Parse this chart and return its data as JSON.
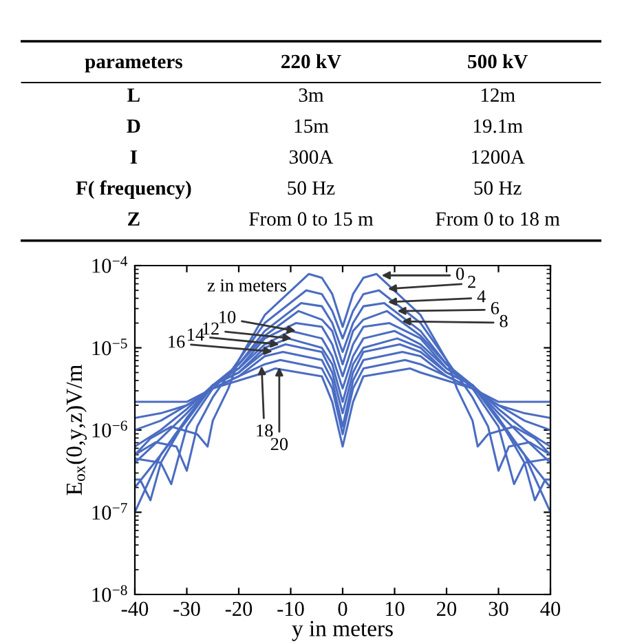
{
  "chart_data": [
    {
      "type": "other",
      "annotations": [
        "parameters",
        "220 kV",
        "500 kV",
        "L",
        "3m",
        "12m",
        "D",
        "15m",
        "19.1m",
        "I",
        "300A",
        "1200A",
        "F( frequency)",
        "50 Hz",
        "50 Hz",
        "Z",
        "From 0 to 15 m",
        "From 0 to 18 m"
      ]
    },
    {
      "type": "line",
      "xlabel": "y in meters",
      "ylabel": "E$_{ox}$(0,y,z)V/m",
      "log": "y",
      "xlim": [
        -40,
        40
      ],
      "xticks": [
        -40,
        -30,
        -20,
        -10,
        0,
        10,
        20,
        30,
        40
      ],
      "ylim": [
        1e-08,
        0.0001
      ],
      "yticks": [
        {
          "value": 1e-08,
          "label": "10$^{−8}$"
        },
        {
          "value": 1e-07,
          "label": "10$^{−7}$"
        },
        {
          "value": 1e-06,
          "label": "10$^{−6}$"
        },
        {
          "value": 1e-05,
          "label": "10$^{−5}$"
        },
        {
          "value": 0.0001,
          "label": "10$^{−4}$"
        }
      ],
      "series": [
        {
          "color": "#4a6cc2",
          "x": [
            -40,
            -37,
            -33,
            -28,
            -26,
            -25,
            -22,
            -20,
            -15,
            -6.5,
            -4,
            -2,
            0,
            2,
            4,
            6.5,
            15,
            20,
            22,
            25,
            26,
            28,
            33,
            37,
            40
          ],
          "values": [
            5e-07,
            7.9e-07,
            1.1e-06,
            8.9e-07,
            6.3e-07,
            1.3e-06,
            3.2e-06,
            7.1e-06,
            2.5e-05,
            7.9e-05,
            7.1e-05,
            4.5e-05,
            1.8e-05,
            4.5e-05,
            7.1e-05,
            7.9e-05,
            2.5e-05,
            7.1e-06,
            3.2e-06,
            1.3e-06,
            6.3e-07,
            8.9e-07,
            1.1e-06,
            7.9e-07,
            5e-07
          ]
        },
        {
          "color": "#4a6cc2",
          "x": [
            -40,
            -36,
            -32,
            -30,
            -28,
            -25,
            -20,
            -15,
            -7,
            -4,
            -2,
            0,
            2,
            4,
            7,
            15,
            20,
            25,
            28,
            30,
            32,
            36,
            40
          ],
          "values": [
            5e-07,
            7.1e-07,
            6.3e-07,
            3.2e-07,
            1.1e-06,
            2.5e-06,
            7.1e-06,
            2e-05,
            5e-05,
            4.5e-05,
            2.8e-05,
            1.3e-05,
            2.8e-05,
            4.5e-05,
            5e-05,
            2e-05,
            7.1e-06,
            2.5e-06,
            1.1e-06,
            3.2e-07,
            6.3e-07,
            7.1e-07,
            5e-07
          ]
        },
        {
          "color": "#4a6cc2",
          "x": [
            -40,
            -35,
            -33,
            -30,
            -25,
            -20,
            -15,
            -8,
            -4,
            -2,
            0,
            2,
            4,
            8,
            15,
            20,
            25,
            30,
            33,
            35,
            40
          ],
          "values": [
            4.5e-07,
            4e-07,
            2.2e-07,
            1.1e-06,
            3.2e-06,
            6.3e-06,
            1.6e-05,
            3.5e-05,
            3.2e-05,
            2e-05,
            8.9e-06,
            2e-05,
            3.2e-05,
            3.5e-05,
            1.6e-05,
            6.3e-06,
            3.2e-06,
            1.1e-06,
            2.2e-07,
            4e-07,
            4.5e-07
          ]
        },
        {
          "color": "#4a6cc2",
          "x": [
            -40,
            -39,
            -37,
            -35,
            -30,
            -25,
            -20,
            -15,
            -8.5,
            -4,
            -2,
            0,
            2,
            4,
            8.5,
            15,
            20,
            25,
            30,
            35,
            37,
            39,
            40
          ],
          "values": [
            2.5e-07,
            2.5e-07,
            1.4e-07,
            4e-07,
            1.4e-06,
            3.5e-06,
            6.3e-06,
            1.4e-05,
            2.8e-05,
            2.2e-05,
            1.6e-05,
            6.3e-06,
            1.6e-05,
            2.2e-05,
            2.8e-05,
            1.4e-05,
            6.3e-06,
            3.5e-06,
            1.4e-06,
            4e-07,
            1.4e-07,
            2.5e-07,
            2.5e-07
          ]
        },
        {
          "color": "#4a6cc2",
          "x": [
            -40,
            -35,
            -30,
            -25,
            -20,
            -15,
            -9,
            -4,
            -2,
            0,
            2,
            4,
            9,
            15,
            20,
            25,
            30,
            35,
            40
          ],
          "values": [
            1e-07,
            5e-07,
            1.4e-06,
            3.5e-06,
            5.6e-06,
            1.3e-05,
            2e-05,
            1.8e-05,
            1.1e-05,
            4.5e-06,
            1.1e-05,
            1.8e-05,
            2e-05,
            1.3e-05,
            5.6e-06,
            3.5e-06,
            1.4e-06,
            5e-07,
            1e-07
          ]
        },
        {
          "color": "#4a6cc2",
          "x": [
            -40,
            -35,
            -30,
            -25,
            -20,
            -15,
            -10,
            -4,
            -2,
            0,
            2,
            4,
            10,
            15,
            20,
            25,
            30,
            35,
            40
          ],
          "values": [
            2e-07,
            5e-07,
            1.3e-06,
            3.5e-06,
            5.6e-06,
            1.1e-05,
            1.6e-05,
            1.3e-05,
            7.9e-06,
            3.2e-06,
            7.9e-06,
            1.3e-05,
            1.6e-05,
            1.1e-05,
            5.6e-06,
            3.5e-06,
            1.3e-06,
            5e-07,
            2e-07
          ]
        },
        {
          "color": "#4a6cc2",
          "x": [
            -40,
            -35,
            -30,
            -25,
            -20,
            -15,
            -10.5,
            -4,
            -2,
            0,
            2,
            4,
            10.5,
            15,
            20,
            25,
            30,
            35,
            40
          ],
          "values": [
            4e-07,
            7.9e-07,
            1.6e-06,
            3.5e-06,
            5e-06,
            1e-05,
            1.3e-05,
            1e-05,
            6.3e-06,
            2.2e-06,
            6.3e-06,
            1e-05,
            1.3e-05,
            1e-05,
            5e-06,
            3.5e-06,
            1.6e-06,
            7.9e-07,
            4e-07
          ]
        },
        {
          "color": "#4a6cc2",
          "x": [
            -40,
            -35,
            -30,
            -25,
            -20,
            -15,
            -11,
            -4,
            -2,
            0,
            2,
            4,
            11,
            15,
            20,
            25,
            30,
            35,
            40
          ],
          "values": [
            6.3e-07,
            1e-06,
            1.8e-06,
            3.5e-06,
            5e-06,
            8.9e-06,
            1.1e-05,
            8.9e-06,
            5e-06,
            1.6e-06,
            5e-06,
            8.9e-06,
            1.1e-05,
            8.9e-06,
            5e-06,
            3.5e-06,
            1.8e-06,
            1e-06,
            6.3e-07
          ]
        },
        {
          "color": "#4a6cc2",
          "x": [
            -40,
            -35,
            -30,
            -25,
            -20,
            -15,
            -11.5,
            -4,
            -2,
            0,
            2,
            4,
            11.5,
            15,
            20,
            25,
            30,
            35,
            40
          ],
          "values": [
            1e-06,
            1.3e-06,
            2e-06,
            3.2e-06,
            4.5e-06,
            7.9e-06,
            8.9e-06,
            7.1e-06,
            4e-06,
            1.1e-06,
            4e-06,
            7.1e-06,
            8.9e-06,
            7.9e-06,
            4.5e-06,
            3.2e-06,
            2e-06,
            1.3e-06,
            1e-06
          ]
        },
        {
          "color": "#4a6cc2",
          "x": [
            -40,
            -35,
            -30,
            -25,
            -20,
            -15,
            -12,
            -4,
            -2,
            0,
            2,
            4,
            12,
            15,
            20,
            25,
            30,
            35,
            40
          ],
          "values": [
            1.4e-06,
            1.6e-06,
            2e-06,
            3.2e-06,
            4.5e-06,
            6.3e-06,
            7.1e-06,
            5.6e-06,
            3.2e-06,
            8.9e-07,
            3.2e-06,
            5.6e-06,
            7.1e-06,
            6.3e-06,
            4.5e-06,
            3.2e-06,
            2e-06,
            1.6e-06,
            1.4e-06
          ]
        },
        {
          "color": "#4a6cc2",
          "x": [
            -40,
            -35,
            -30,
            -25,
            -20,
            -15,
            -13,
            -4,
            -2,
            0,
            2,
            4,
            13,
            15,
            20,
            25,
            30,
            35,
            40
          ],
          "values": [
            2.2e-06,
            2.2e-06,
            2.2e-06,
            3.2e-06,
            4e-06,
            5e-06,
            5.6e-06,
            4.5e-06,
            2.2e-06,
            6.3e-07,
            2.2e-06,
            4.5e-06,
            5.6e-06,
            5e-06,
            4e-06,
            3.2e-06,
            2.2e-06,
            2.2e-06,
            2.2e-06
          ]
        }
      ],
      "annotations": [
        "z in meters",
        {
          "text": "0",
          "x": 7.5,
          "y": 7.6e-05
        },
        {
          "text": "2",
          "x": 8.7,
          "y": 5.2e-05
        },
        {
          "text": "4",
          "x": 8.7,
          "y": 3.6e-05
        },
        {
          "text": "6",
          "x": 10.5,
          "y": 2.8e-05
        },
        {
          "text": "8",
          "x": 11.4,
          "y": 2.1e-05
        },
        {
          "text": "10",
          "x": -9,
          "y": 1.6e-05
        },
        {
          "text": "12",
          "x": -9.8,
          "y": 1.3e-05
        },
        {
          "text": "14",
          "x": -12.2,
          "y": 1.1e-05
        },
        {
          "text": "16",
          "x": -13.5,
          "y": 9e-06
        },
        {
          "text": "18",
          "x": -15.6,
          "y": 6e-06
        },
        {
          "text": "20",
          "x": -12.2,
          "y": 5.8e-06
        }
      ]
    }
  ]
}
